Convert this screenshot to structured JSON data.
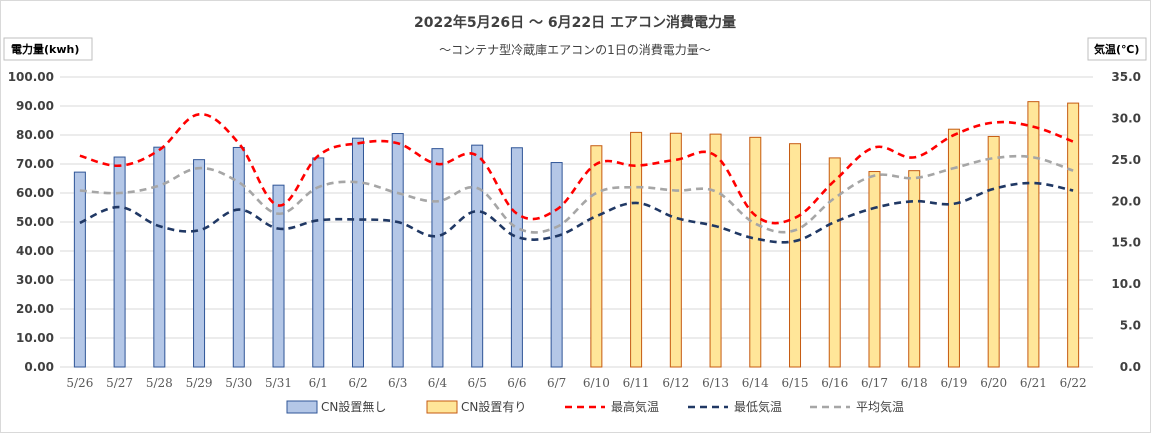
{
  "chart_data": {
    "type": "bar",
    "title": "2022年5月26日 ～ 6月22日 エアコン消費電力量",
    "subtitle": "～コンテナ型冷蔵庫エアコンの1日の消費電力量～",
    "y_left_label": "電力量(kwh)",
    "y_right_label": "気温(℃)",
    "y_left_range": [
      0,
      100
    ],
    "y_left_ticks": [
      "0.00",
      "10.00",
      "20.00",
      "30.00",
      "40.00",
      "50.00",
      "60.00",
      "70.00",
      "80.00",
      "90.00",
      "100.00"
    ],
    "y_right_range": [
      0,
      35
    ],
    "y_right_ticks": [
      "0.0",
      "5.0",
      "10.0",
      "15.0",
      "20.0",
      "25.0",
      "30.0",
      "35.0"
    ],
    "grid": true,
    "legend_position": "bottom",
    "categories": [
      "5/26",
      "5/27",
      "5/28",
      "5/29",
      "5/30",
      "5/31",
      "6/1",
      "6/2",
      "6/3",
      "6/4",
      "6/5",
      "6/6",
      "6/7",
      "6/10",
      "6/11",
      "6/12",
      "6/13",
      "6/14",
      "6/15",
      "6/16",
      "6/17",
      "6/18",
      "6/19",
      "6/20",
      "6/21",
      "6/22"
    ],
    "bar_series": [
      {
        "name": "CN設置無し",
        "color_fill": "#b4c7e7",
        "color_border": "#2f5597",
        "values": [
          67.2,
          72.4,
          75.8,
          71.5,
          75.7,
          62.7,
          72.1,
          78.9,
          80.5,
          75.3,
          76.5,
          75.6,
          70.5,
          null,
          null,
          null,
          null,
          null,
          null,
          null,
          null,
          null,
          null,
          null,
          null,
          null
        ]
      },
      {
        "name": "CN設置有り",
        "color_fill": "#ffe699",
        "color_border": "#c55a11",
        "values": [
          null,
          null,
          null,
          null,
          null,
          null,
          null,
          null,
          null,
          null,
          null,
          null,
          null,
          76.3,
          80.9,
          80.6,
          80.3,
          79.2,
          77.0,
          72.1,
          67.4,
          67.7,
          82.0,
          79.5,
          91.5,
          91.0
        ]
      }
    ],
    "line_series": [
      {
        "name": "最高気温",
        "color": "#ff0000",
        "axis": "right",
        "values": [
          25.5,
          24.3,
          26.2,
          30.5,
          27.0,
          19.5,
          25.5,
          27.0,
          27.0,
          24.5,
          25.5,
          18.5,
          19.0,
          24.5,
          24.3,
          25.0,
          25.5,
          18.3,
          18.0,
          22.5,
          26.5,
          25.3,
          28.0,
          29.5,
          29.0,
          27.2
        ]
      },
      {
        "name": "最低気温",
        "color": "#203864",
        "axis": "right",
        "values": [
          17.4,
          19.3,
          17.0,
          16.5,
          19.0,
          16.7,
          17.7,
          17.8,
          17.5,
          15.8,
          18.8,
          15.7,
          15.8,
          18.2,
          19.8,
          18.0,
          17.0,
          15.5,
          15.2,
          17.5,
          19.2,
          20.0,
          19.7,
          21.5,
          22.2,
          21.3
        ]
      },
      {
        "name": "平均気温",
        "color": "#a6a6a6",
        "axis": "right",
        "values": [
          21.3,
          21.0,
          21.9,
          24.0,
          22.3,
          18.5,
          21.7,
          22.3,
          21.0,
          20.0,
          21.6,
          16.8,
          16.9,
          21.0,
          21.7,
          21.3,
          21.2,
          17.3,
          16.5,
          20.4,
          23.1,
          22.8,
          24.0,
          25.2,
          25.3,
          23.7
        ]
      }
    ]
  }
}
